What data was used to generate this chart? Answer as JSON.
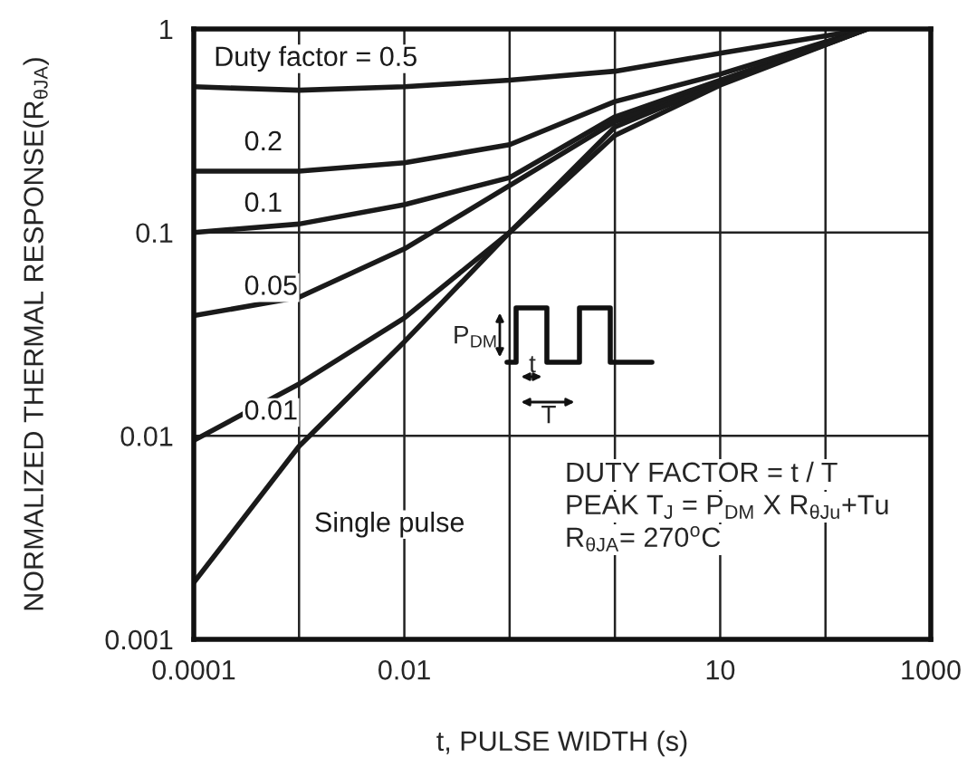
{
  "chart_data": {
    "type": "line",
    "log": "xy",
    "grid": true,
    "legend": false,
    "xlabel": "t, PULSE WIDTH (s)",
    "ylabel": "NORMALIZED THERMAL RESPONSE(R$_{θJA}$)",
    "xlim": [
      0.0001,
      1000
    ],
    "ylim": [
      0.001,
      1
    ],
    "xticks": [
      {
        "value": 0.0001,
        "label": "0.0001"
      },
      {
        "value": 0.001,
        "label": null
      },
      {
        "value": 0.01,
        "label": "0.01"
      },
      {
        "value": 0.1,
        "label": null
      },
      {
        "value": 1,
        "label": null
      },
      {
        "value": 10,
        "label": "10"
      },
      {
        "value": 100,
        "label": null
      },
      {
        "value": 1000,
        "label": "1000"
      }
    ],
    "yticks": [
      {
        "value": 0.001,
        "label": "0.001"
      },
      {
        "value": 0.01,
        "label": "0.01"
      },
      {
        "value": 0.1,
        "label": "0.1"
      },
      {
        "value": 1,
        "label": "1"
      }
    ],
    "x": [
      0.0001,
      0.001,
      0.01,
      0.1,
      1,
      10,
      250
    ],
    "series": [
      {
        "name": "Duty factor = 0.5",
        "color": "#1a1a1a",
        "values": [
          0.52,
          0.5,
          0.52,
          0.56,
          0.62,
          0.76,
          1
        ]
      },
      {
        "name": "0.2",
        "color": "#1a1a1a",
        "values": [
          0.2,
          0.2,
          0.22,
          0.27,
          0.44,
          0.6,
          1
        ]
      },
      {
        "name": "0.1",
        "color": "#1a1a1a",
        "values": [
          0.1,
          0.11,
          0.137,
          0.186,
          0.37,
          0.56,
          1
        ]
      },
      {
        "name": "0.05",
        "color": "#1a1a1a",
        "values": [
          0.039,
          0.048,
          0.083,
          0.17,
          0.35,
          0.54,
          1
        ]
      },
      {
        "name": "0.01",
        "color": "#1a1a1a",
        "values": [
          0.0095,
          0.018,
          0.038,
          0.1,
          0.33,
          0.54,
          1
        ]
      },
      {
        "name": "Single pulse",
        "color": "#1a1a1a",
        "values": [
          0.0019,
          0.0089,
          0.029,
          0.1,
          0.3,
          0.53,
          1
        ]
      }
    ],
    "annotations": [
      "P$_{DM}$",
      "t",
      "T",
      "DUTY FACTOR = t / T",
      "PEAK T$_{J}$ = P$_{DM}$ X R$_{θJu}$+Tu",
      "R$_{θJA}$= 270$^{o}$C"
    ]
  }
}
